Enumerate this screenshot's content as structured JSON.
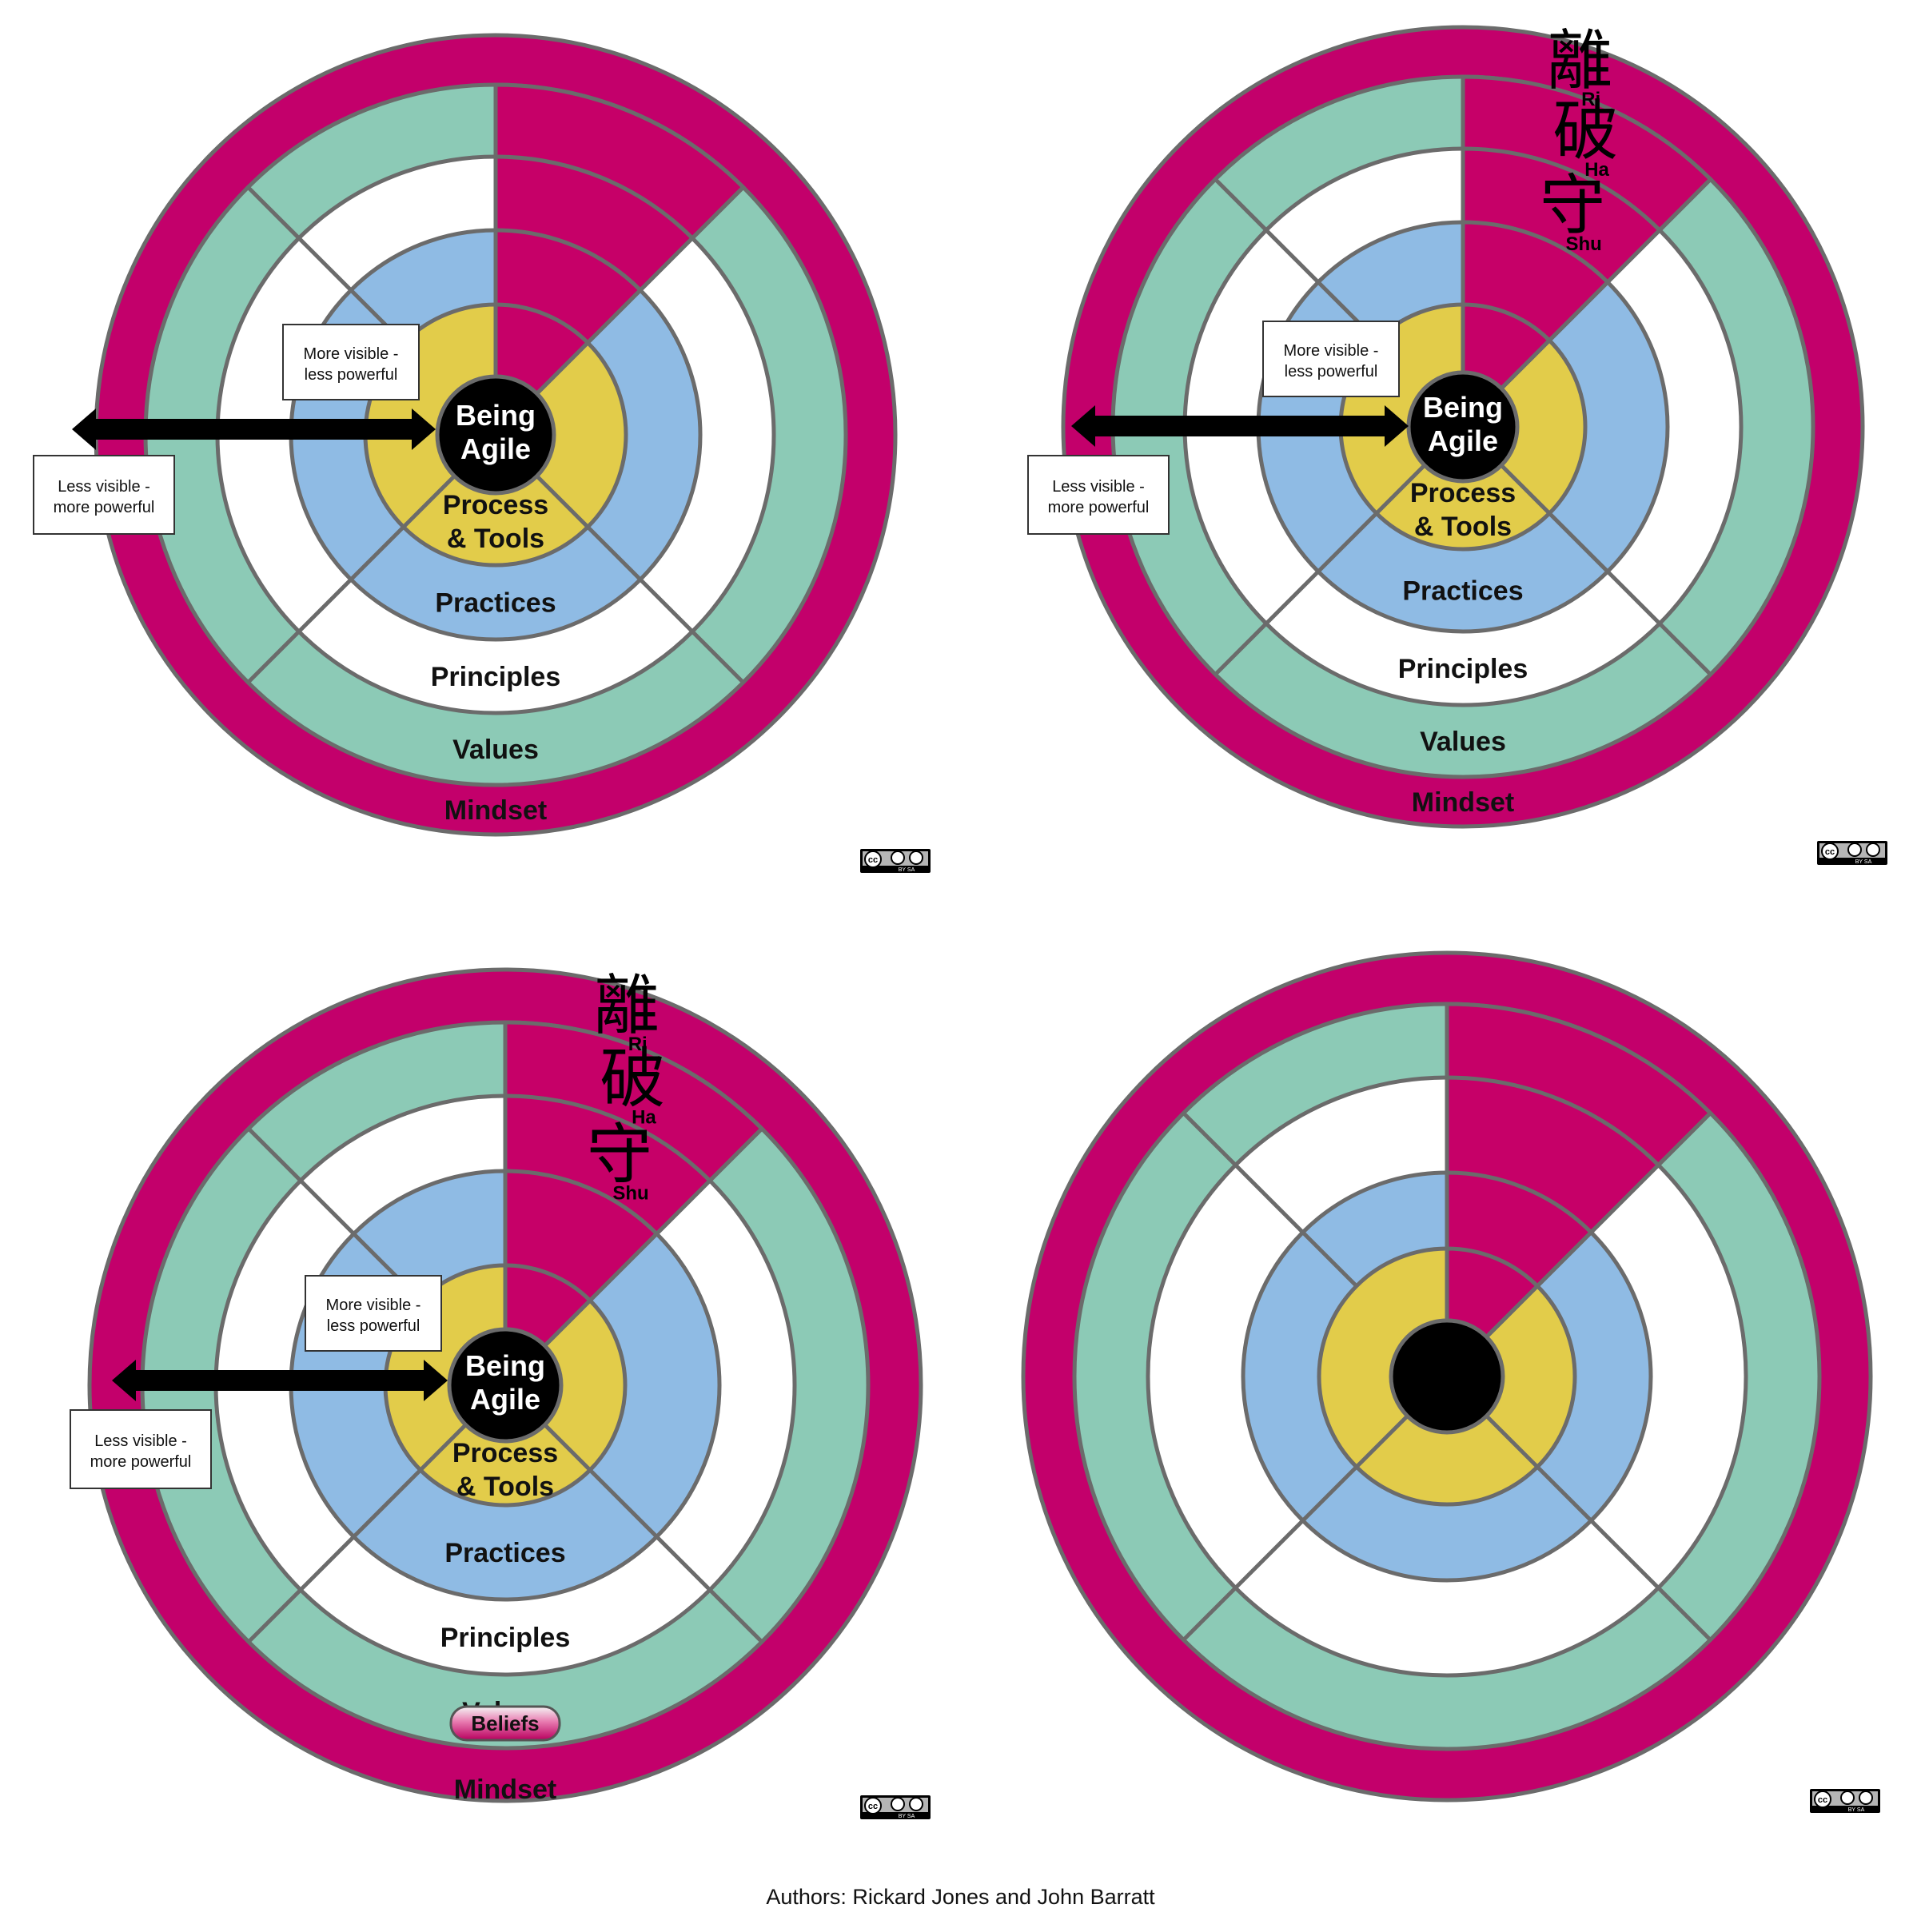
{
  "colors": {
    "mindset": "#c3006b",
    "values": "#8ccab6",
    "principles": "#ffffff",
    "practices": "#8fbbe4",
    "process": "#e2cc4a",
    "core": "#000000",
    "stroke": "#6b6b6b",
    "shuhari": "#c60068"
  },
  "rings": {
    "core": "Being\nAgile",
    "process": "Process\n& Tools",
    "practices": "Practices",
    "principles": "Principles",
    "values": "Values",
    "mindset": "Mindset"
  },
  "shuhari": {
    "ri": {
      "kanji": "離",
      "romaji": "Ri"
    },
    "ha": {
      "kanji": "破",
      "romaji": "Ha"
    },
    "shu": {
      "kanji": "守",
      "romaji": "Shu"
    }
  },
  "annotations": {
    "more_visible": "More visible -\nless powerful",
    "less_visible": "Less visible -\nmore powerful",
    "beliefs": "Beliefs"
  },
  "panels": [
    {
      "id": "top-left",
      "show_labels": true,
      "show_kanji": false,
      "show_beliefs": false,
      "show_annotations": true
    },
    {
      "id": "top-right",
      "show_labels": true,
      "show_kanji": true,
      "show_beliefs": false,
      "show_annotations": true
    },
    {
      "id": "bottom-left",
      "show_labels": true,
      "show_kanji": true,
      "show_beliefs": true,
      "show_annotations": true
    },
    {
      "id": "bottom-right",
      "show_labels": false,
      "show_kanji": false,
      "show_beliefs": false,
      "show_annotations": false
    }
  ],
  "license": {
    "badge": "cc",
    "sub": "BY  SA"
  },
  "authors": "Authors: Rickard Jones and John Barratt"
}
